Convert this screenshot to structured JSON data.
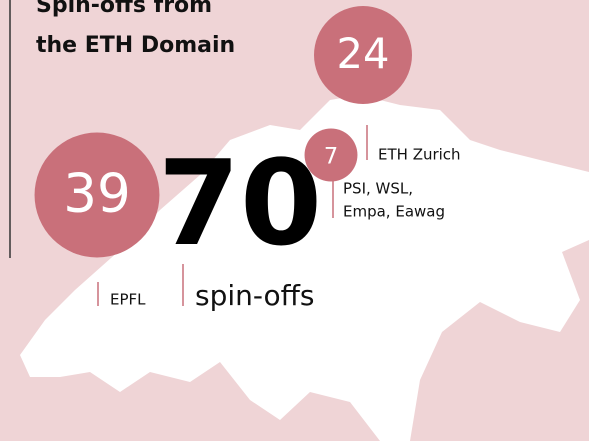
{
  "title": [
    "Spin-offs from",
    "the ETH Domain"
  ],
  "total": {
    "value": "70",
    "label": "spin-offs"
  },
  "bubbles": [
    {
      "value": 24,
      "label": null
    },
    {
      "value": 39,
      "label": "EPFL"
    },
    {
      "value": 7,
      "label": "ETH Zurich"
    }
  ],
  "extra_label": [
    "PSI, WSL,",
    "Empa, Eawag"
  ]
}
